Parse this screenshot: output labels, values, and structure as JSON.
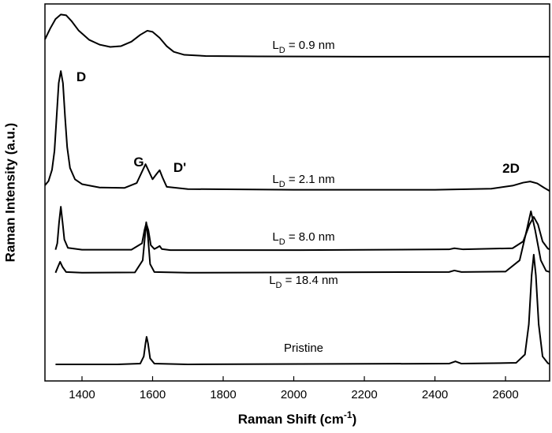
{
  "chart_data": {
    "type": "line",
    "xlabel": [
      "Raman Shift (cm",
      "-1",
      ")"
    ],
    "ylabel": "Raman Intensity (a.u.)",
    "xlim": [
      1295,
      2725
    ],
    "ylim": [
      0,
      100
    ],
    "xticks": [
      1400,
      1600,
      1800,
      2000,
      2200,
      2400,
      2600
    ],
    "annotations": [
      "D",
      "G",
      "D'",
      "2D"
    ],
    "series": [
      {
        "label": [
          "L",
          "D",
          " = 0.9 nm"
        ],
        "color": "#000000",
        "x": [
          1295,
          1310,
          1325,
          1340,
          1355,
          1370,
          1390,
          1420,
          1450,
          1480,
          1510,
          1540,
          1565,
          1585,
          1600,
          1620,
          1640,
          1660,
          1690,
          1750,
          1900,
          2200,
          2500,
          2725
        ],
        "values": [
          90.6,
          93.5,
          96.0,
          97.2,
          97.0,
          95.5,
          93.0,
          90.5,
          89.2,
          88.6,
          88.8,
          90.0,
          91.8,
          92.9,
          92.6,
          91.0,
          88.8,
          87.3,
          86.5,
          86.2,
          86.1,
          86.0,
          86.0,
          86.0
        ]
      },
      {
        "label": [
          "L",
          "D",
          " = 2.1 nm"
        ],
        "color": "#000000",
        "x": [
          1295,
          1305,
          1315,
          1322,
          1328,
          1334,
          1340,
          1346,
          1352,
          1358,
          1366,
          1380,
          1400,
          1450,
          1520,
          1555,
          1570,
          1580,
          1590,
          1600,
          1612,
          1620,
          1628,
          1640,
          1700,
          2000,
          2400,
          2560,
          2620,
          2650,
          2670,
          2690,
          2710,
          2725
        ],
        "values": [
          51.9,
          53.0,
          56.0,
          61,
          70,
          79,
          82.2,
          79,
          70,
          62,
          56.5,
          53.5,
          52.2,
          51.3,
          51.2,
          52.5,
          55.5,
          57.5,
          55.5,
          53.5,
          55,
          55.9,
          54,
          51.5,
          50.9,
          50.7,
          50.7,
          51.0,
          51.8,
          52.6,
          52.9,
          52.4,
          51.2,
          50.4
        ]
      },
      {
        "label": [
          "L",
          "D",
          " = 8.0 nm"
        ],
        "color": "#000000",
        "x": [
          1325,
          1330,
          1335,
          1340,
          1345,
          1350,
          1360,
          1400,
          1540,
          1570,
          1577,
          1582,
          1588,
          1595,
          1605,
          1615,
          1620,
          1626,
          1650,
          2000,
          2440,
          2455,
          2480,
          2620,
          2650,
          2668,
          2680,
          2692,
          2705,
          2720,
          2725
        ],
        "values": [
          34.8,
          36.5,
          42,
          46.2,
          42,
          37.5,
          35.3,
          34.8,
          34.8,
          36.5,
          40,
          41.8,
          40,
          36,
          35,
          35.5,
          35.8,
          35,
          34.7,
          34.7,
          34.9,
          35.2,
          34.9,
          35.2,
          37,
          41.5,
          43.5,
          41.5,
          37,
          35.1,
          34.9
        ]
      },
      {
        "label": [
          "L",
          "D",
          " = 18.4 nm"
        ],
        "color": "#000000",
        "x": [
          1325,
          1332,
          1338,
          1345,
          1355,
          1400,
          1550,
          1572,
          1578,
          1582,
          1587,
          1593,
          1605,
          1700,
          2440,
          2455,
          2475,
          2600,
          2640,
          2660,
          2672,
          2684,
          2700,
          2715,
          2725
        ],
        "values": [
          28.7,
          30.3,
          31.6,
          30.2,
          28.9,
          28.7,
          28.8,
          32,
          38,
          42.1,
          38,
          31,
          28.9,
          28.7,
          28.9,
          29.3,
          28.9,
          29.0,
          32,
          40,
          45.0,
          40,
          32,
          29.2,
          28.9
        ]
      },
      {
        "label": [
          "Pristine"
        ],
        "color": "#000000",
        "x": [
          1325,
          1500,
          1565,
          1575,
          1580,
          1583,
          1587,
          1593,
          1605,
          1700,
          2440,
          2458,
          2475,
          2630,
          2655,
          2666,
          2674,
          2680,
          2686,
          2694,
          2705,
          2720,
          2725
        ],
        "values": [
          4.4,
          4.4,
          4.6,
          6.5,
          10,
          11.7,
          10,
          6,
          4.6,
          4.4,
          4.6,
          5.2,
          4.6,
          4.8,
          7,
          15,
          28,
          33.5,
          28,
          15,
          6.5,
          4.7,
          4.5
        ]
      }
    ]
  }
}
